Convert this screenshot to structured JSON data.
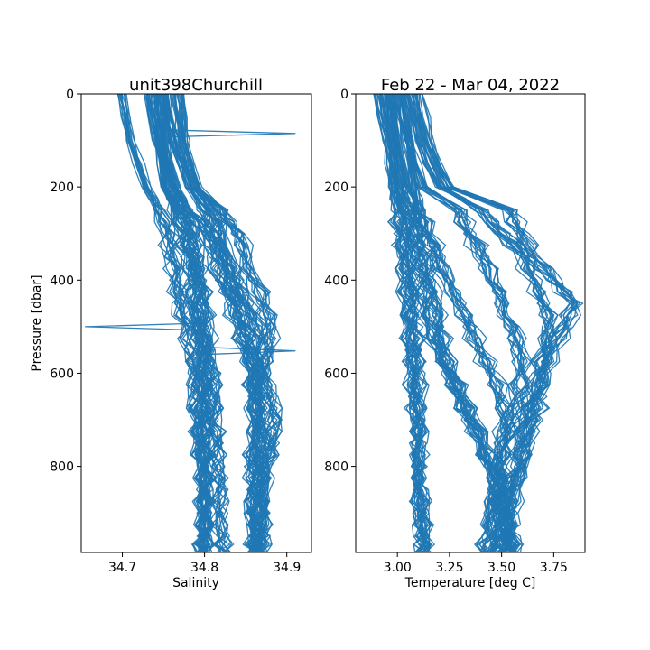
{
  "chart_data": [
    {
      "type": "line",
      "title": "unit398Churchill",
      "xlabel": "Salinity",
      "ylabel": "Pressure [dbar]",
      "xlim": [
        34.65,
        34.93
      ],
      "ylim": [
        985,
        0
      ],
      "y_inverted": true,
      "xticks": [
        34.7,
        34.8,
        34.9
      ],
      "xtick_labels": [
        "34.7",
        "34.8",
        "34.9"
      ],
      "yticks": [
        0,
        200,
        400,
        600,
        800
      ],
      "ytick_labels": [
        "0",
        "200",
        "400",
        "600",
        "800"
      ],
      "color": "#1f77b4",
      "grid": false,
      "profile_pressure": [
        0,
        100,
        200,
        250,
        300,
        350,
        400,
        450,
        500,
        550,
        600,
        650,
        700,
        750,
        800,
        850,
        900,
        950,
        985
      ],
      "series": [
        {
          "values": [
            34.74,
            34.745,
            34.75,
            34.77,
            34.78,
            34.785,
            34.79,
            34.79,
            34.795,
            34.8,
            34.8,
            34.8,
            34.8,
            34.8,
            34.8,
            34.8,
            34.8,
            34.8,
            34.8
          ]
        },
        {
          "values": [
            34.7,
            34.71,
            34.73,
            34.745,
            34.755,
            34.76,
            34.765,
            34.77,
            34.78,
            34.785,
            34.79,
            34.79,
            34.795,
            34.795,
            34.8,
            34.8,
            34.8,
            34.8,
            34.8
          ]
        },
        {
          "values": [
            34.75,
            34.76,
            34.78,
            34.8,
            34.81,
            34.82,
            34.83,
            34.84,
            34.85,
            34.855,
            34.86,
            34.86,
            34.865,
            34.86,
            34.865,
            34.86,
            34.86,
            34.865,
            34.86
          ]
        },
        {
          "values": [
            34.76,
            34.77,
            34.79,
            34.81,
            34.82,
            34.83,
            34.84,
            34.85,
            34.86,
            34.865,
            34.87,
            34.87,
            34.87,
            34.875,
            34.87,
            34.87,
            34.87,
            34.865,
            34.865
          ]
        },
        {
          "values": [
            34.73,
            34.74,
            34.76,
            34.78,
            34.8,
            34.81,
            34.82,
            34.83,
            34.84,
            34.85,
            34.855,
            34.86,
            34.86,
            34.86,
            34.855,
            34.86,
            34.855,
            34.86,
            34.86
          ]
        },
        {
          "values": [
            34.75,
            34.75,
            34.765,
            34.775,
            34.785,
            34.79,
            34.795,
            34.8,
            34.8,
            34.805,
            34.81,
            34.81,
            34.81,
            34.815,
            34.815,
            34.82,
            34.82,
            34.82,
            34.825
          ]
        },
        {
          "values": [
            34.77,
            34.775,
            34.79,
            34.82,
            34.84,
            34.85,
            34.86,
            34.87,
            34.88,
            34.875,
            34.87,
            34.88,
            34.885,
            34.88,
            34.875,
            34.87,
            34.87,
            34.87,
            34.87
          ]
        },
        {
          "values": [
            34.745,
            34.75,
            34.755,
            34.765,
            34.775,
            34.78,
            34.785,
            34.785,
            34.79,
            34.795,
            34.795,
            34.8,
            34.8,
            34.8,
            34.8,
            34.8,
            34.8,
            34.8,
            34.8
          ]
        }
      ],
      "outliers": [
        {
          "x": 34.91,
          "y": 85
        },
        {
          "x": 34.655,
          "y": 500
        },
        {
          "x": 34.91,
          "y": 552
        }
      ]
    },
    {
      "type": "line",
      "title": "Feb 22 - Mar 04, 2022",
      "xlabel": "Temperature [deg C]",
      "ylabel": "",
      "xlim": [
        2.8,
        3.9
      ],
      "ylim": [
        985,
        0
      ],
      "y_inverted": true,
      "xticks": [
        3.0,
        3.25,
        3.5,
        3.75
      ],
      "xtick_labels": [
        "3.00",
        "3.25",
        "3.50",
        "3.75"
      ],
      "yticks": [
        0,
        200,
        400,
        600,
        800
      ],
      "ytick_labels": [
        "0",
        "200",
        "400",
        "600",
        "800"
      ],
      "color": "#1f77b4",
      "grid": false,
      "profile_pressure": [
        0,
        100,
        200,
        250,
        300,
        350,
        400,
        450,
        500,
        550,
        600,
        650,
        700,
        750,
        800,
        850,
        900,
        950,
        985
      ],
      "series": [
        {
          "values": [
            2.95,
            2.98,
            3.0,
            3.02,
            3.04,
            3.05,
            3.06,
            3.07,
            3.08,
            3.08,
            3.09,
            3.1,
            3.1,
            3.1,
            3.11,
            3.11,
            3.12,
            3.12,
            3.12
          ]
        },
        {
          "values": [
            2.9,
            2.95,
            2.98,
            3.0,
            3.02,
            3.03,
            3.04,
            3.05,
            3.06,
            3.07,
            3.08,
            3.08,
            3.09,
            3.1,
            3.1,
            3.11,
            3.11,
            3.12,
            3.12
          ]
        },
        {
          "values": [
            3.0,
            3.05,
            3.12,
            3.3,
            3.35,
            3.4,
            3.45,
            3.5,
            3.55,
            3.58,
            3.6,
            3.58,
            3.55,
            3.52,
            3.5,
            3.5,
            3.48,
            3.47,
            3.45
          ]
        },
        {
          "values": [
            3.05,
            3.1,
            3.2,
            3.4,
            3.5,
            3.6,
            3.65,
            3.7,
            3.72,
            3.7,
            3.68,
            3.65,
            3.62,
            3.6,
            3.58,
            3.55,
            3.52,
            3.5,
            3.5
          ]
        },
        {
          "values": [
            3.1,
            3.15,
            3.25,
            3.55,
            3.6,
            3.65,
            3.75,
            3.85,
            3.8,
            3.75,
            3.7,
            3.68,
            3.66,
            3.62,
            3.6,
            3.55,
            3.55,
            3.52,
            3.5
          ]
        },
        {
          "values": [
            2.98,
            3.0,
            3.05,
            3.1,
            3.15,
            3.2,
            3.25,
            3.3,
            3.35,
            3.4,
            3.45,
            3.5,
            3.52,
            3.5,
            3.48,
            3.46,
            3.45,
            3.44,
            3.42
          ]
        },
        {
          "values": [
            3.02,
            3.05,
            3.08,
            3.1,
            3.12,
            3.14,
            3.15,
            3.18,
            3.2,
            3.22,
            3.25,
            3.3,
            3.35,
            3.4,
            3.45,
            3.48,
            3.5,
            3.52,
            3.55
          ]
        },
        {
          "values": [
            2.96,
            2.99,
            3.02,
            3.05,
            3.08,
            3.1,
            3.12,
            3.14,
            3.16,
            3.2,
            3.25,
            3.3,
            3.35,
            3.4,
            3.45,
            3.5,
            3.52,
            3.55,
            3.55
          ]
        }
      ]
    }
  ]
}
